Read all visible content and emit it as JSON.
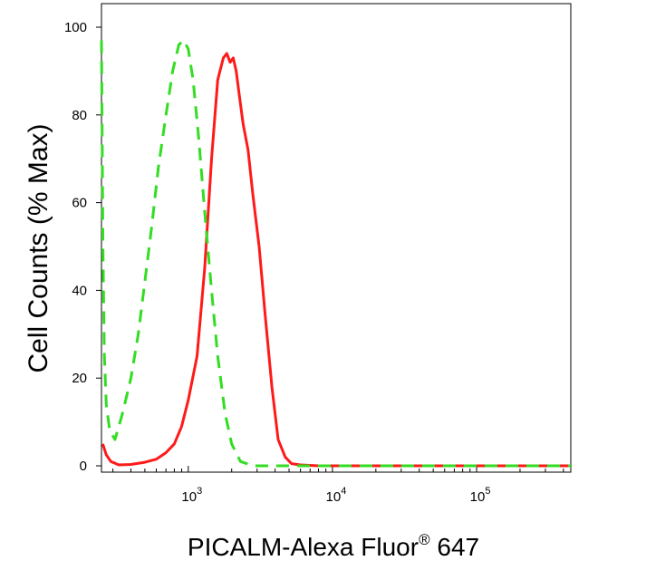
{
  "chart_data": {
    "type": "line",
    "xlabel": "PICALM-Alexa Fluor",
    "xlabel_superscript": "®",
    "xlabel_suffix": " 647",
    "ylabel": "Cell Counts (% Max)",
    "x_scale": "log",
    "xlim": [
      250,
      450000
    ],
    "ylim": [
      0,
      100
    ],
    "grid": false,
    "y_ticks": [
      0,
      20,
      40,
      60,
      80,
      100
    ],
    "x_major_ticks": [
      {
        "value": 1000,
        "base": "10",
        "exp": "3"
      },
      {
        "value": 10000,
        "base": "10",
        "exp": "4"
      },
      {
        "value": 100000,
        "base": "10",
        "exp": "5"
      }
    ],
    "series": [
      {
        "color": "#ff1a1a",
        "style": "solid",
        "x": [
          255,
          270,
          290,
          330,
          400,
          500,
          600,
          700,
          800,
          900,
          1000,
          1150,
          1300,
          1450,
          1600,
          1750,
          1850,
          1950,
          2050,
          2150,
          2250,
          2400,
          2600,
          2800,
          3100,
          3400,
          3800,
          4200,
          4700,
          5200,
          6000,
          8000,
          20000,
          100000,
          450000
        ],
        "y": [
          5,
          2.5,
          1,
          0.2,
          0.3,
          0.8,
          1.5,
          3,
          5,
          9,
          15,
          25,
          45,
          70,
          88,
          93,
          94,
          92,
          93,
          90,
          85,
          78,
          72,
          62,
          50,
          35,
          18,
          6,
          2,
          0.5,
          0.2,
          0,
          0,
          0,
          0
        ]
      },
      {
        "color": "#33dd22",
        "style": "dashed",
        "x": [
          250,
          252,
          256,
          262,
          270,
          285,
          310,
          350,
          400,
          450,
          500,
          560,
          620,
          700,
          780,
          860,
          930,
          1000,
          1080,
          1180,
          1300,
          1450,
          1600,
          1800,
          2000,
          2300,
          2800,
          3500,
          5000,
          10000,
          100000,
          450000
        ],
        "y": [
          97,
          80,
          50,
          25,
          14,
          8,
          6,
          12,
          20,
          30,
          42,
          55,
          68,
          80,
          90,
          96,
          97,
          95,
          88,
          75,
          58,
          40,
          25,
          12,
          5,
          1,
          0,
          0,
          0,
          0,
          0,
          0
        ]
      }
    ]
  }
}
